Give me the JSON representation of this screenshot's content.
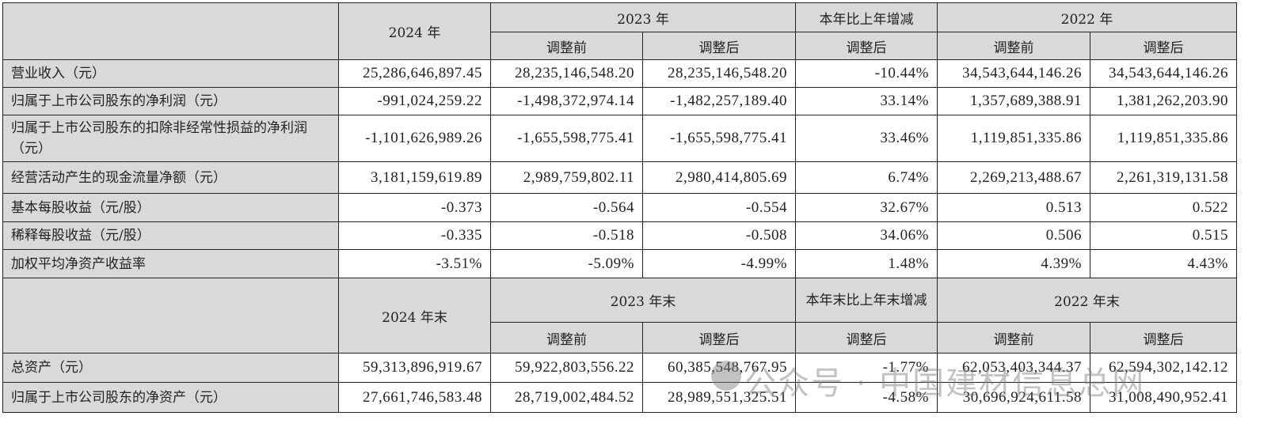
{
  "header1": {
    "y2024": "2024 年",
    "y2023": "2023 年",
    "change": "本年比上年增减",
    "y2022": "2022 年",
    "sub": [
      "调整前",
      "调整后",
      "调整后",
      "调整前",
      "调整后"
    ]
  },
  "rows1": [
    {
      "label": "营业收入（元）",
      "values": [
        "25,286,646,897.45",
        "28,235,146,548.20",
        "28,235,146,548.20",
        "-10.44%",
        "34,543,644,146.26",
        "34,543,644,146.26"
      ]
    },
    {
      "label": "归属于上市公司股东的净利润（元）",
      "values": [
        "-991,024,259.22",
        "-1,498,372,974.14",
        "-1,482,257,189.40",
        "33.14%",
        "1,357,689,388.91",
        "1,381,262,203.90"
      ]
    },
    {
      "label": "归属于上市公司股东的扣除非经常性损益的净利润（元）",
      "values": [
        "-1,101,626,989.26",
        "-1,655,598,775.41",
        "-1,655,598,775.41",
        "33.46%",
        "1,119,851,335.86",
        "1,119,851,335.86"
      ]
    },
    {
      "label": "经营活动产生的现金流量净额（元）",
      "values": [
        "3,181,159,619.89",
        "2,989,759,802.11",
        "2,980,414,805.69",
        "6.74%",
        "2,269,213,488.67",
        "2,261,319,131.58"
      ]
    },
    {
      "label": "基本每股收益（元/股）",
      "values": [
        "-0.373",
        "-0.564",
        "-0.554",
        "32.67%",
        "0.513",
        "0.522"
      ]
    },
    {
      "label": "稀释每股收益（元/股）",
      "values": [
        "-0.335",
        "-0.518",
        "-0.508",
        "34.06%",
        "0.506",
        "0.515"
      ]
    },
    {
      "label": "加权平均净资产收益率",
      "values": [
        "-3.51%",
        "-5.09%",
        "-4.99%",
        "1.48%",
        "4.39%",
        "4.43%"
      ]
    }
  ],
  "header2": {
    "y2024": "2024 年末",
    "y2023": "2023 年末",
    "change": "本年末比上年末增减",
    "y2022": "2022 年末",
    "sub": [
      "调整前",
      "调整后",
      "调整后",
      "调整前",
      "调整后"
    ]
  },
  "rows2": [
    {
      "label": "总资产（元）",
      "values": [
        "59,313,896,919.67",
        "59,922,803,556.22",
        "60,385,548,767.95",
        "-1.77%",
        "62,053,403,344.37",
        "62,594,302,142.12"
      ]
    },
    {
      "label": "归属于上市公司股东的净资产（元）",
      "values": [
        "27,661,746,583.48",
        "28,719,002,484.52",
        "28,989,551,325.51",
        "-4.58%",
        "30,696,924,611.58",
        "31,008,490,952.41"
      ]
    }
  ],
  "watermark": "公众号 · 中国建材信息总网"
}
